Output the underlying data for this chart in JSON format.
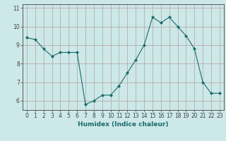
{
  "x": [
    0,
    1,
    2,
    3,
    4,
    5,
    6,
    7,
    8,
    9,
    10,
    11,
    12,
    13,
    14,
    15,
    16,
    17,
    18,
    19,
    20,
    21,
    22,
    23
  ],
  "y": [
    9.4,
    9.3,
    8.8,
    8.4,
    8.6,
    8.6,
    8.6,
    5.8,
    6.0,
    6.3,
    6.3,
    6.8,
    7.5,
    8.2,
    9.0,
    10.5,
    10.2,
    10.5,
    10.0,
    9.5,
    8.8,
    7.0,
    6.4,
    6.4
  ],
  "xlabel": "Humidex (Indice chaleur)",
  "ylim": [
    5.5,
    11.2
  ],
  "xlim": [
    -0.5,
    23.5
  ],
  "yticks": [
    6,
    7,
    8,
    9,
    10,
    11
  ],
  "xticks": [
    0,
    1,
    2,
    3,
    4,
    5,
    6,
    7,
    8,
    9,
    10,
    11,
    12,
    13,
    14,
    15,
    16,
    17,
    18,
    19,
    20,
    21,
    22,
    23
  ],
  "line_color": "#1a6b6b",
  "marker_color": "#1a6b6b",
  "bg_color": "#cce8e8",
  "grid_color": "#b8a0a0",
  "axis_color": "#444444",
  "tick_fontsize": 5.5,
  "xlabel_fontsize": 6.5
}
